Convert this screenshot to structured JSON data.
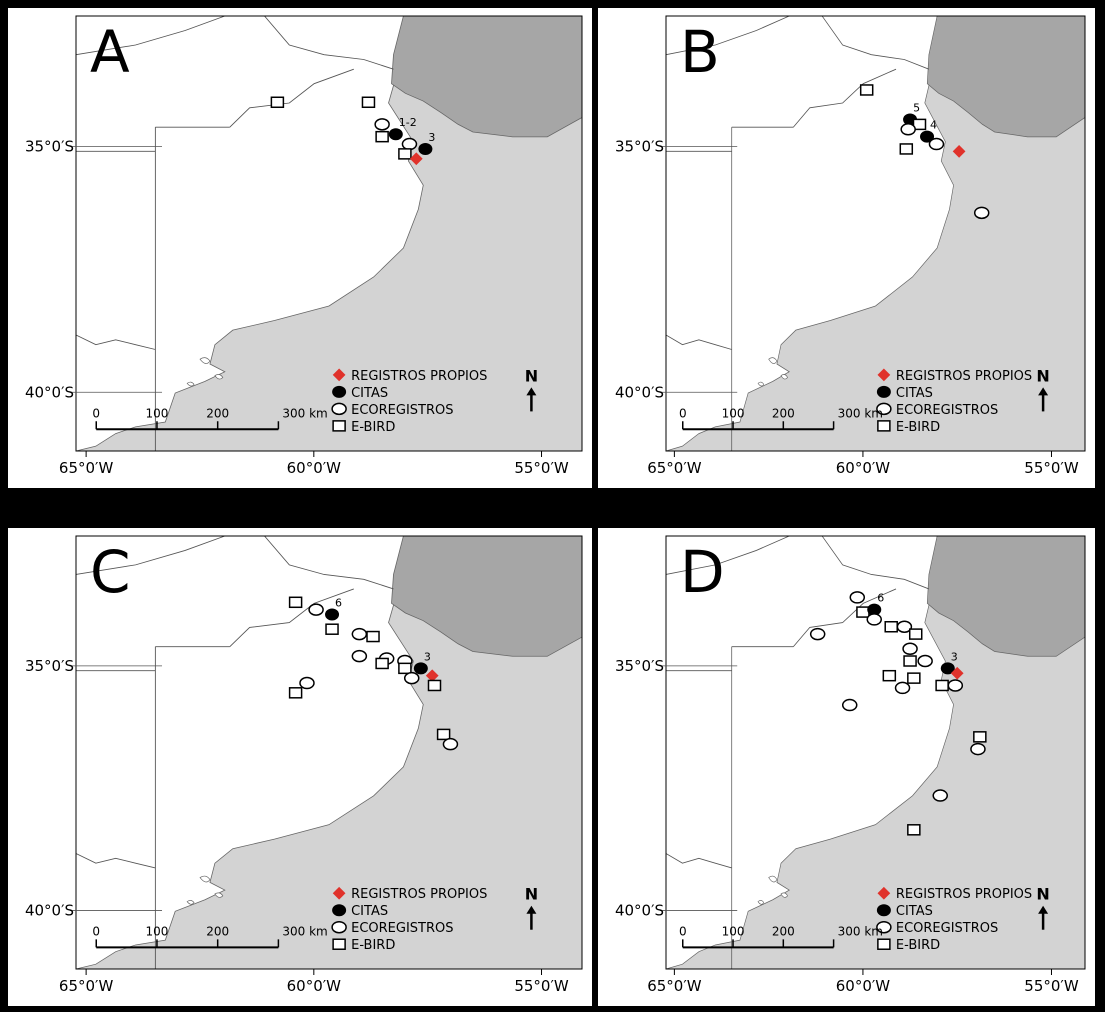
{
  "legend": {
    "items": [
      {
        "key": "propios",
        "label": "REGISTROS PROPIOS",
        "symbol": "diamond",
        "color": "#e0322b"
      },
      {
        "key": "citas",
        "label": "CITAS",
        "symbol": "filled-circle",
        "color": "#000000"
      },
      {
        "key": "eco",
        "label": "ECOREGISTROS",
        "symbol": "open-circle",
        "color": "#000000"
      },
      {
        "key": "ebird",
        "label": "E-BIRD",
        "symbol": "open-square",
        "color": "#000000"
      }
    ]
  },
  "north_arrow": {
    "label": "N"
  },
  "scale_bar": {
    "ticks": [
      "0",
      "100",
      "200",
      "300 km"
    ]
  },
  "axes": {
    "lon_ticks": [
      "65°0′W",
      "60°0′W",
      "55°0′W"
    ],
    "lat_ticks": [
      "35°0′S",
      "40°0′S"
    ]
  },
  "colors": {
    "land": "#ffffff",
    "sea": "#d3d3d3",
    "estuary": "#a6a6a6",
    "frame": "#000000"
  },
  "panels": [
    {
      "id": "A",
      "points": [
        {
          "type": "ebird",
          "lon": -60.8,
          "lat": -34.1
        },
        {
          "type": "ebird",
          "lon": -58.8,
          "lat": -34.1
        },
        {
          "type": "eco",
          "lon": -58.5,
          "lat": -34.55
        },
        {
          "type": "ebird",
          "lon": -58.5,
          "lat": -34.8
        },
        {
          "type": "citas",
          "lon": -58.2,
          "lat": -34.75,
          "label": "1-2"
        },
        {
          "type": "eco",
          "lon": -57.9,
          "lat": -34.95
        },
        {
          "type": "citas",
          "lon": -57.55,
          "lat": -35.05,
          "label": "3"
        },
        {
          "type": "ebird",
          "lon": -58.0,
          "lat": -35.15
        },
        {
          "type": "propios",
          "lon": -57.75,
          "lat": -35.25
        }
      ]
    },
    {
      "id": "B",
      "points": [
        {
          "type": "ebird",
          "lon": -59.9,
          "lat": -33.85
        },
        {
          "type": "citas",
          "lon": -58.75,
          "lat": -34.45,
          "label": "5"
        },
        {
          "type": "ebird",
          "lon": -58.5,
          "lat": -34.55
        },
        {
          "type": "eco",
          "lon": -58.8,
          "lat": -34.65
        },
        {
          "type": "citas",
          "lon": -58.3,
          "lat": -34.8,
          "label": "4"
        },
        {
          "type": "eco",
          "lon": -58.05,
          "lat": -34.95
        },
        {
          "type": "ebird",
          "lon": -58.85,
          "lat": -35.05
        },
        {
          "type": "propios",
          "lon": -57.45,
          "lat": -35.1
        },
        {
          "type": "eco",
          "lon": -56.85,
          "lat": -36.35
        }
      ]
    },
    {
      "id": "C",
      "points": [
        {
          "type": "ebird",
          "lon": -60.4,
          "lat": -33.7
        },
        {
          "type": "eco",
          "lon": -59.95,
          "lat": -33.85
        },
        {
          "type": "citas",
          "lon": -59.6,
          "lat": -33.95,
          "label": "6"
        },
        {
          "type": "ebird",
          "lon": -59.6,
          "lat": -34.25
        },
        {
          "type": "eco",
          "lon": -59.0,
          "lat": -34.35
        },
        {
          "type": "ebird",
          "lon": -58.7,
          "lat": -34.4
        },
        {
          "type": "eco",
          "lon": -59.0,
          "lat": -34.8
        },
        {
          "type": "eco",
          "lon": -58.4,
          "lat": -34.85
        },
        {
          "type": "ebird",
          "lon": -58.5,
          "lat": -34.95
        },
        {
          "type": "eco",
          "lon": -58.0,
          "lat": -34.9
        },
        {
          "type": "ebird",
          "lon": -58.0,
          "lat": -35.05
        },
        {
          "type": "citas",
          "lon": -57.65,
          "lat": -35.05,
          "label": "3"
        },
        {
          "type": "eco",
          "lon": -57.85,
          "lat": -35.25
        },
        {
          "type": "propios",
          "lon": -57.4,
          "lat": -35.2
        },
        {
          "type": "ebird",
          "lon": -57.35,
          "lat": -35.4
        },
        {
          "type": "eco",
          "lon": -60.15,
          "lat": -35.35
        },
        {
          "type": "ebird",
          "lon": -60.4,
          "lat": -35.55
        },
        {
          "type": "ebird",
          "lon": -57.15,
          "lat": -36.4
        },
        {
          "type": "eco",
          "lon": -57.0,
          "lat": -36.6
        }
      ]
    },
    {
      "id": "D",
      "points": [
        {
          "type": "eco",
          "lon": -60.15,
          "lat": -33.6
        },
        {
          "type": "ebird",
          "lon": -60.0,
          "lat": -33.9
        },
        {
          "type": "citas",
          "lon": -59.7,
          "lat": -33.85,
          "label": "6"
        },
        {
          "type": "eco",
          "lon": -59.7,
          "lat": -34.05
        },
        {
          "type": "eco",
          "lon": -61.2,
          "lat": -34.35
        },
        {
          "type": "ebird",
          "lon": -59.25,
          "lat": -34.2
        },
        {
          "type": "eco",
          "lon": -58.9,
          "lat": -34.2
        },
        {
          "type": "ebird",
          "lon": -58.6,
          "lat": -34.35
        },
        {
          "type": "eco",
          "lon": -58.75,
          "lat": -34.65
        },
        {
          "type": "ebird",
          "lon": -58.75,
          "lat": -34.9
        },
        {
          "type": "eco",
          "lon": -58.35,
          "lat": -34.9
        },
        {
          "type": "citas",
          "lon": -57.75,
          "lat": -35.05,
          "label": "3"
        },
        {
          "type": "propios",
          "lon": -57.5,
          "lat": -35.15
        },
        {
          "type": "ebird",
          "lon": -59.3,
          "lat": -35.2
        },
        {
          "type": "eco",
          "lon": -58.95,
          "lat": -35.45
        },
        {
          "type": "ebird",
          "lon": -58.65,
          "lat": -35.25
        },
        {
          "type": "ebird",
          "lon": -57.9,
          "lat": -35.4
        },
        {
          "type": "eco",
          "lon": -57.55,
          "lat": -35.4
        },
        {
          "type": "eco",
          "lon": -60.35,
          "lat": -35.8
        },
        {
          "type": "ebird",
          "lon": -56.9,
          "lat": -36.45
        },
        {
          "type": "eco",
          "lon": -56.95,
          "lat": -36.7
        },
        {
          "type": "eco",
          "lon": -57.95,
          "lat": -37.65
        },
        {
          "type": "ebird",
          "lon": -58.65,
          "lat": -38.35
        }
      ]
    }
  ]
}
